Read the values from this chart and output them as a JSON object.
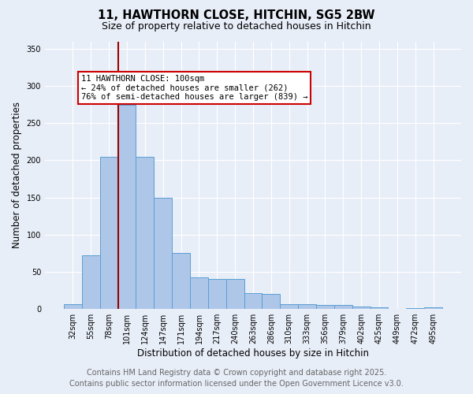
{
  "title_line1": "11, HAWTHORN CLOSE, HITCHIN, SG5 2BW",
  "title_line2": "Size of property relative to detached houses in Hitchin",
  "xlabel": "Distribution of detached houses by size in Hitchin",
  "ylabel": "Number of detached properties",
  "bar_labels": [
    "32sqm",
    "55sqm",
    "78sqm",
    "101sqm",
    "124sqm",
    "147sqm",
    "171sqm",
    "194sqm",
    "217sqm",
    "240sqm",
    "263sqm",
    "286sqm",
    "310sqm",
    "333sqm",
    "356sqm",
    "379sqm",
    "402sqm",
    "425sqm",
    "449sqm",
    "472sqm",
    "495sqm"
  ],
  "bar_values": [
    7,
    72,
    205,
    275,
    205,
    150,
    75,
    43,
    41,
    40,
    21,
    20,
    7,
    7,
    6,
    5,
    3,
    2,
    0,
    1,
    2
  ],
  "bar_color": "#aec6e8",
  "bar_edge_color": "#5a9fd4",
  "background_color": "#e8eef8",
  "grid_color": "#ffffff",
  "vline_x_index": 3,
  "vline_color": "#990000",
  "annotation_text": "11 HAWTHORN CLOSE: 100sqm\n← 24% of detached houses are smaller (262)\n76% of semi-detached houses are larger (839) →",
  "annotation_box_facecolor": "#ffffff",
  "annotation_box_edgecolor": "#cc0000",
  "ylim": [
    0,
    360
  ],
  "yticks": [
    0,
    50,
    100,
    150,
    200,
    250,
    300,
    350
  ],
  "footer_line1": "Contains HM Land Registry data © Crown copyright and database right 2025.",
  "footer_line2": "Contains public sector information licensed under the Open Government Licence v3.0.",
  "footer_color": "#666666",
  "footer_fontsize": 7.0,
  "title1_fontsize": 10.5,
  "title2_fontsize": 9.0,
  "ylabel_fontsize": 8.5,
  "xlabel_fontsize": 8.5,
  "tick_fontsize": 7.0,
  "annot_fontsize": 7.5
}
